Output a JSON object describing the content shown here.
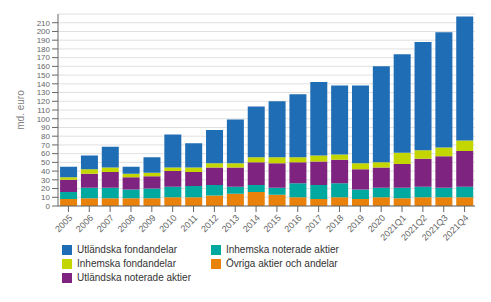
{
  "chart_data": {
    "type": "bar",
    "stacked": true,
    "grid": true,
    "ylabel": "md. euro",
    "categories": [
      "2005",
      "2006",
      "2007",
      "2008",
      "2009",
      "2010",
      "2011",
      "2012",
      "2013",
      "2014",
      "2015",
      "2016",
      "2017",
      "2018",
      "2019",
      "2020",
      "2021Q1",
      "2021Q2",
      "2021Q3",
      "2021Q4"
    ],
    "series": [
      {
        "name": "Övriga aktier och andelar",
        "color": "#e8820a",
        "values": [
          8,
          9,
          9,
          9,
          9,
          10,
          10,
          12,
          14,
          16,
          13,
          10,
          8,
          10,
          8,
          10,
          9,
          10,
          10,
          10
        ]
      },
      {
        "name": "Inhemska noterade aktier",
        "color": "#00a9a0",
        "values": [
          8,
          12,
          12,
          10,
          11,
          12,
          13,
          12,
          8,
          8,
          8,
          16,
          16,
          16,
          11,
          11,
          12,
          12,
          11,
          12
        ]
      },
      {
        "name": "Utländska noterade aktier",
        "color": "#7f2380",
        "values": [
          14,
          16,
          18,
          14,
          14,
          18,
          16,
          20,
          22,
          26,
          28,
          24,
          27,
          27,
          23,
          23,
          27,
          32,
          36,
          41
        ]
      },
      {
        "name": "Inhemska fondandelar",
        "color": "#c4d600",
        "values": [
          3,
          5,
          5,
          4,
          4,
          4,
          5,
          5,
          5,
          6,
          7,
          6,
          7,
          6,
          7,
          6,
          13,
          10,
          10,
          12
        ]
      },
      {
        "name": "Utländska fondandelar",
        "color": "#1f6eb5",
        "values": [
          12,
          16,
          24,
          8,
          18,
          38,
          28,
          38,
          50,
          58,
          64,
          72,
          84,
          79,
          89,
          110,
          113,
          124,
          132,
          142
        ]
      }
    ],
    "ylim": [
      0,
      220
    ],
    "yticks": [
      0,
      10,
      20,
      30,
      40,
      50,
      60,
      70,
      80,
      90,
      100,
      110,
      120,
      130,
      140,
      150,
      160,
      170,
      180,
      190,
      200,
      210
    ]
  }
}
